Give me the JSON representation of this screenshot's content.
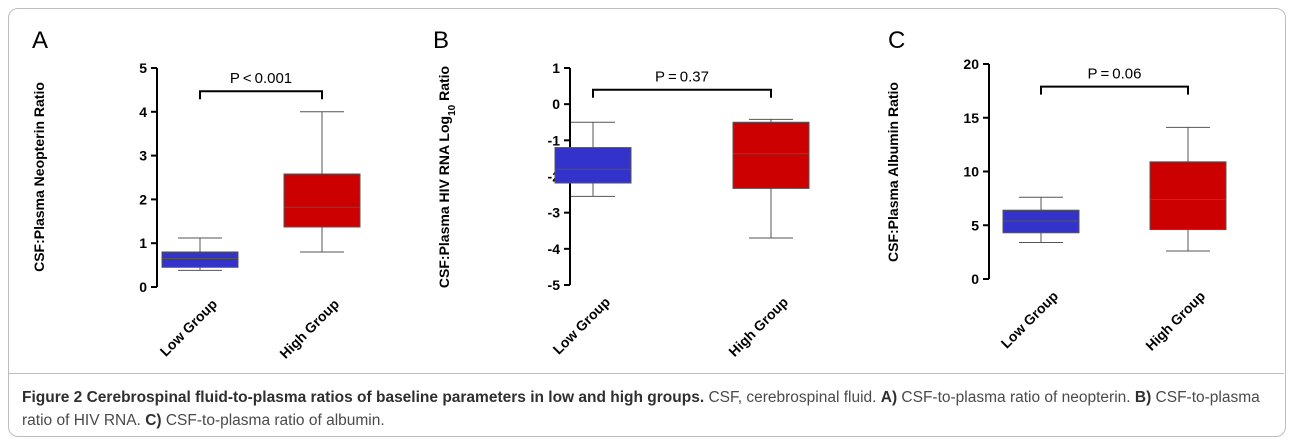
{
  "chart_data": [
    {
      "type": "box",
      "panel_letter": "A",
      "ylabel": "CSF:Plasma Neopterin Ratio",
      "ylim": [
        0,
        5
      ],
      "yticks": [
        "0",
        "1",
        "2",
        "3",
        "4",
        "5"
      ],
      "categories": [
        "Low Group",
        "High Group"
      ],
      "boxes": [
        {
          "category": "Low Group",
          "min": 0.38,
          "q1": 0.45,
          "median": 0.65,
          "q3": 0.8,
          "max": 1.12,
          "color": "#3333cc"
        },
        {
          "category": "High Group",
          "min": 0.8,
          "q1": 1.37,
          "median": 1.82,
          "q3": 2.58,
          "max": 4.0,
          "color": "#cc0000"
        }
      ],
      "annotation": "P < 0.001",
      "annotation_y": 4.47
    },
    {
      "type": "box",
      "panel_letter": "B",
      "ylabel": "CSF:Plasma HIV RNA Log",
      "ylabel_subscript": "10",
      "ylabel_suffix": " Ratio",
      "ylim": [
        -5,
        1
      ],
      "yticks": [
        "-5",
        "-4",
        "-3",
        "-2",
        "-1",
        "0",
        "1"
      ],
      "categories": [
        "Low Group",
        "High Group"
      ],
      "boxes": [
        {
          "category": "Low Group",
          "min": -2.55,
          "q1": -2.18,
          "median": -1.8,
          "q3": -1.2,
          "max": -0.5,
          "color": "#3333cc"
        },
        {
          "category": "High Group",
          "min": -3.7,
          "q1": -2.33,
          "median": -1.37,
          "q3": -0.5,
          "max": -0.42,
          "color": "#cc0000"
        }
      ],
      "annotation": "P = 0.37",
      "annotation_y": 0.4
    },
    {
      "type": "box",
      "panel_letter": "C",
      "ylabel": "CSF:Plasma Albumin Ratio",
      "ylim": [
        0,
        20
      ],
      "yticks": [
        "0",
        "5",
        "10",
        "15",
        "20"
      ],
      "categories": [
        "Low Group",
        "High Group"
      ],
      "boxes": [
        {
          "category": "Low Group",
          "min": 3.4,
          "q1": 4.3,
          "median": 5.4,
          "q3": 6.4,
          "max": 7.6,
          "color": "#3333cc"
        },
        {
          "category": "High Group",
          "min": 2.6,
          "q1": 4.6,
          "median": 7.4,
          "q3": 10.9,
          "max": 14.1,
          "color": "#cc0000"
        }
      ],
      "annotation": "P = 0.06",
      "annotation_y": 17.9
    }
  ],
  "caption": {
    "figure_label": "Figure 2",
    "title": "Cerebrospinal fluid-to-plasma ratios of baseline parameters in low and high groups.",
    "text_1": " CSF, cerebrospinal fluid. ",
    "a_label": "A)",
    "a_text": " CSF-to-plasma ratio of neopterin. ",
    "b_label": "B)",
    "b_text": " CSF-to-plasma ratio of HIV RNA. ",
    "c_label": "C)",
    "c_text": " CSF-to-plasma ratio of albumin."
  }
}
